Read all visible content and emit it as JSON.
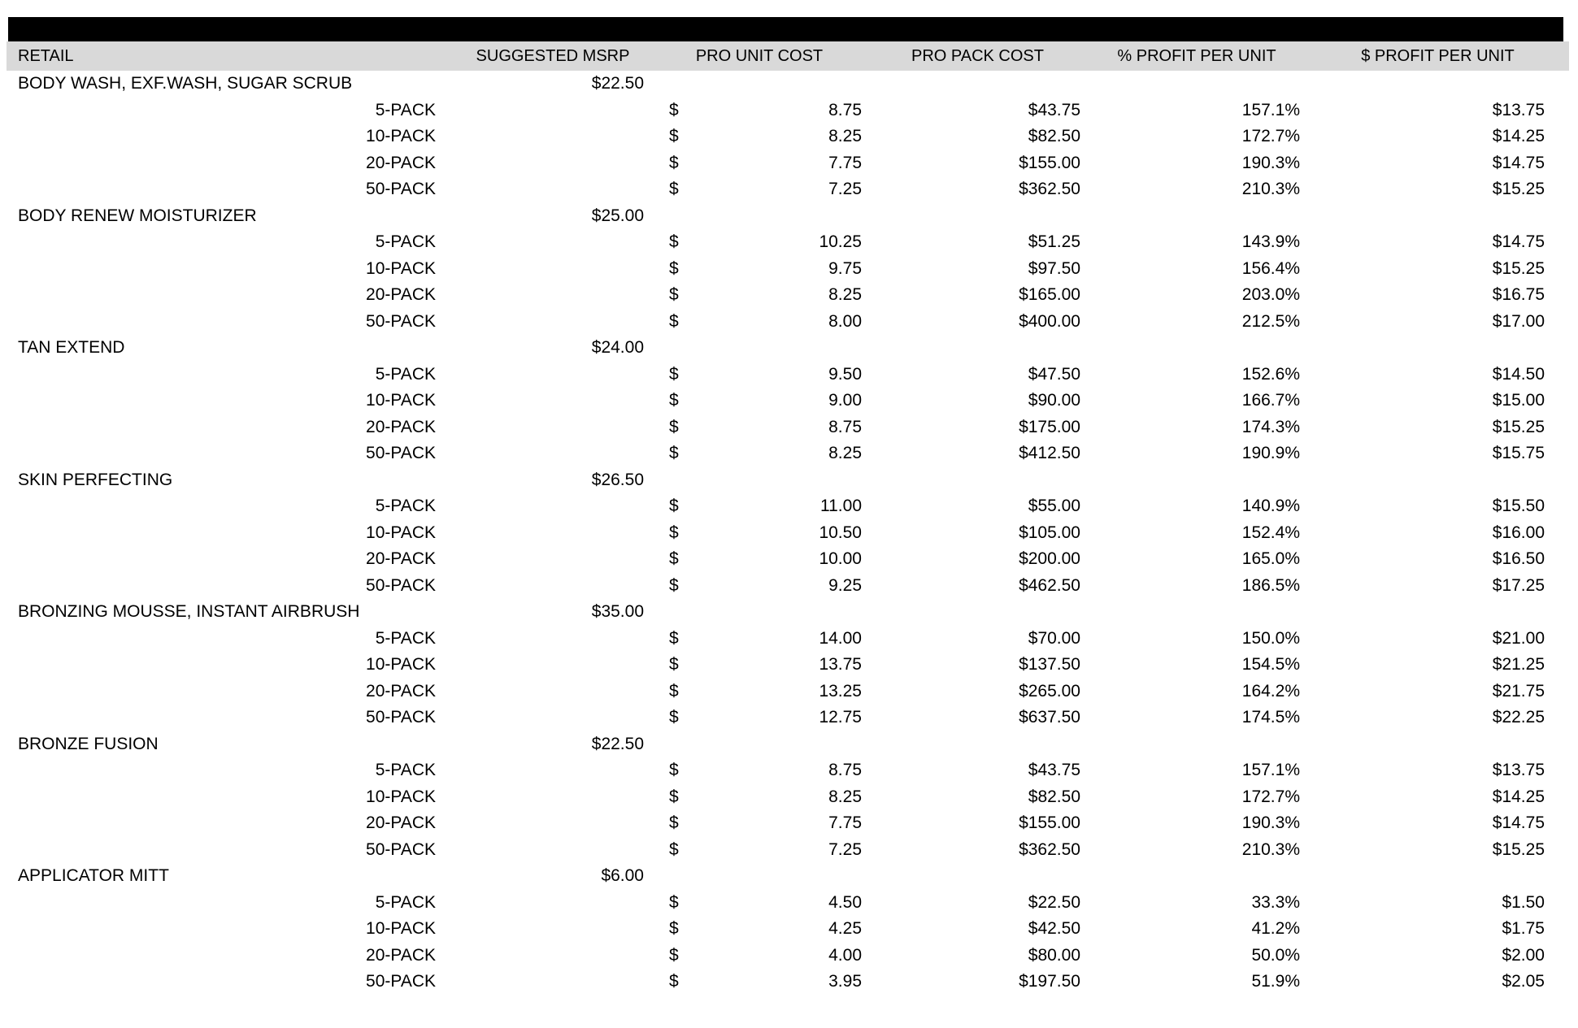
{
  "page": {
    "background": "#ffffff",
    "top_bar_color": "#000000",
    "header_bg": "#d9d9d9",
    "text_color": "#000000"
  },
  "table": {
    "currency_symbol": "$",
    "columns": [
      {
        "key": "retail",
        "label": "RETAIL"
      },
      {
        "key": "msrp",
        "label": "SUGGESTED MSRP"
      },
      {
        "key": "unit_cost",
        "label": "PRO UNIT COST"
      },
      {
        "key": "pack_cost",
        "label": "PRO PACK COST"
      },
      {
        "key": "pct_profit",
        "label": "% PROFIT PER UNIT"
      },
      {
        "key": "usd_profit",
        "label": "$ PROFIT PER UNIT"
      }
    ],
    "products": [
      {
        "name": "BODY WASH, EXF.WASH, SUGAR SCRUB",
        "msrp": "$22.50",
        "packs": [
          {
            "label": "5-PACK",
            "unit_cost": "8.75",
            "pack_cost": "$43.75",
            "pct_profit": "157.1%",
            "usd_profit": "$13.75"
          },
          {
            "label": "10-PACK",
            "unit_cost": "8.25",
            "pack_cost": "$82.50",
            "pct_profit": "172.7%",
            "usd_profit": "$14.25"
          },
          {
            "label": "20-PACK",
            "unit_cost": "7.75",
            "pack_cost": "$155.00",
            "pct_profit": "190.3%",
            "usd_profit": "$14.75"
          },
          {
            "label": "50-PACK",
            "unit_cost": "7.25",
            "pack_cost": "$362.50",
            "pct_profit": "210.3%",
            "usd_profit": "$15.25"
          }
        ]
      },
      {
        "name": "BODY RENEW MOISTURIZER",
        "msrp": "$25.00",
        "packs": [
          {
            "label": "5-PACK",
            "unit_cost": "10.25",
            "pack_cost": "$51.25",
            "pct_profit": "143.9%",
            "usd_profit": "$14.75"
          },
          {
            "label": "10-PACK",
            "unit_cost": "9.75",
            "pack_cost": "$97.50",
            "pct_profit": "156.4%",
            "usd_profit": "$15.25"
          },
          {
            "label": "20-PACK",
            "unit_cost": "8.25",
            "pack_cost": "$165.00",
            "pct_profit": "203.0%",
            "usd_profit": "$16.75"
          },
          {
            "label": "50-PACK",
            "unit_cost": "8.00",
            "pack_cost": "$400.00",
            "pct_profit": "212.5%",
            "usd_profit": "$17.00"
          }
        ]
      },
      {
        "name": "TAN EXTEND",
        "msrp": "$24.00",
        "packs": [
          {
            "label": "5-PACK",
            "unit_cost": "9.50",
            "pack_cost": "$47.50",
            "pct_profit": "152.6%",
            "usd_profit": "$14.50"
          },
          {
            "label": "10-PACK",
            "unit_cost": "9.00",
            "pack_cost": "$90.00",
            "pct_profit": "166.7%",
            "usd_profit": "$15.00"
          },
          {
            "label": "20-PACK",
            "unit_cost": "8.75",
            "pack_cost": "$175.00",
            "pct_profit": "174.3%",
            "usd_profit": "$15.25"
          },
          {
            "label": "50-PACK",
            "unit_cost": "8.25",
            "pack_cost": "$412.50",
            "pct_profit": "190.9%",
            "usd_profit": "$15.75"
          }
        ]
      },
      {
        "name": "SKIN PERFECTING",
        "msrp": "$26.50",
        "packs": [
          {
            "label": "5-PACK",
            "unit_cost": "11.00",
            "pack_cost": "$55.00",
            "pct_profit": "140.9%",
            "usd_profit": "$15.50"
          },
          {
            "label": "10-PACK",
            "unit_cost": "10.50",
            "pack_cost": "$105.00",
            "pct_profit": "152.4%",
            "usd_profit": "$16.00"
          },
          {
            "label": "20-PACK",
            "unit_cost": "10.00",
            "pack_cost": "$200.00",
            "pct_profit": "165.0%",
            "usd_profit": "$16.50"
          },
          {
            "label": "50-PACK",
            "unit_cost": "9.25",
            "pack_cost": "$462.50",
            "pct_profit": "186.5%",
            "usd_profit": "$17.25"
          }
        ]
      },
      {
        "name": "BRONZING MOUSSE, INSTANT AIRBRUSH",
        "msrp": "$35.00",
        "packs": [
          {
            "label": "5-PACK",
            "unit_cost": "14.00",
            "pack_cost": "$70.00",
            "pct_profit": "150.0%",
            "usd_profit": "$21.00"
          },
          {
            "label": "10-PACK",
            "unit_cost": "13.75",
            "pack_cost": "$137.50",
            "pct_profit": "154.5%",
            "usd_profit": "$21.25"
          },
          {
            "label": "20-PACK",
            "unit_cost": "13.25",
            "pack_cost": "$265.00",
            "pct_profit": "164.2%",
            "usd_profit": "$21.75"
          },
          {
            "label": "50-PACK",
            "unit_cost": "12.75",
            "pack_cost": "$637.50",
            "pct_profit": "174.5%",
            "usd_profit": "$22.25"
          }
        ]
      },
      {
        "name": "BRONZE FUSION",
        "msrp": "$22.50",
        "packs": [
          {
            "label": "5-PACK",
            "unit_cost": "8.75",
            "pack_cost": "$43.75",
            "pct_profit": "157.1%",
            "usd_profit": "$13.75"
          },
          {
            "label": "10-PACK",
            "unit_cost": "8.25",
            "pack_cost": "$82.50",
            "pct_profit": "172.7%",
            "usd_profit": "$14.25"
          },
          {
            "label": "20-PACK",
            "unit_cost": "7.75",
            "pack_cost": "$155.00",
            "pct_profit": "190.3%",
            "usd_profit": "$14.75"
          },
          {
            "label": "50-PACK",
            "unit_cost": "7.25",
            "pack_cost": "$362.50",
            "pct_profit": "210.3%",
            "usd_profit": "$15.25"
          }
        ]
      },
      {
        "name": "APPLICATOR MITT",
        "msrp": "$6.00",
        "packs": [
          {
            "label": "5-PACK",
            "unit_cost": "4.50",
            "pack_cost": "$22.50",
            "pct_profit": "33.3%",
            "usd_profit": "$1.50"
          },
          {
            "label": "10-PACK",
            "unit_cost": "4.25",
            "pack_cost": "$42.50",
            "pct_profit": "41.2%",
            "usd_profit": "$1.75"
          },
          {
            "label": "20-PACK",
            "unit_cost": "4.00",
            "pack_cost": "$80.00",
            "pct_profit": "50.0%",
            "usd_profit": "$2.00"
          },
          {
            "label": "50-PACK",
            "unit_cost": "3.95",
            "pack_cost": "$197.50",
            "pct_profit": "51.9%",
            "usd_profit": "$2.05"
          }
        ]
      }
    ]
  }
}
